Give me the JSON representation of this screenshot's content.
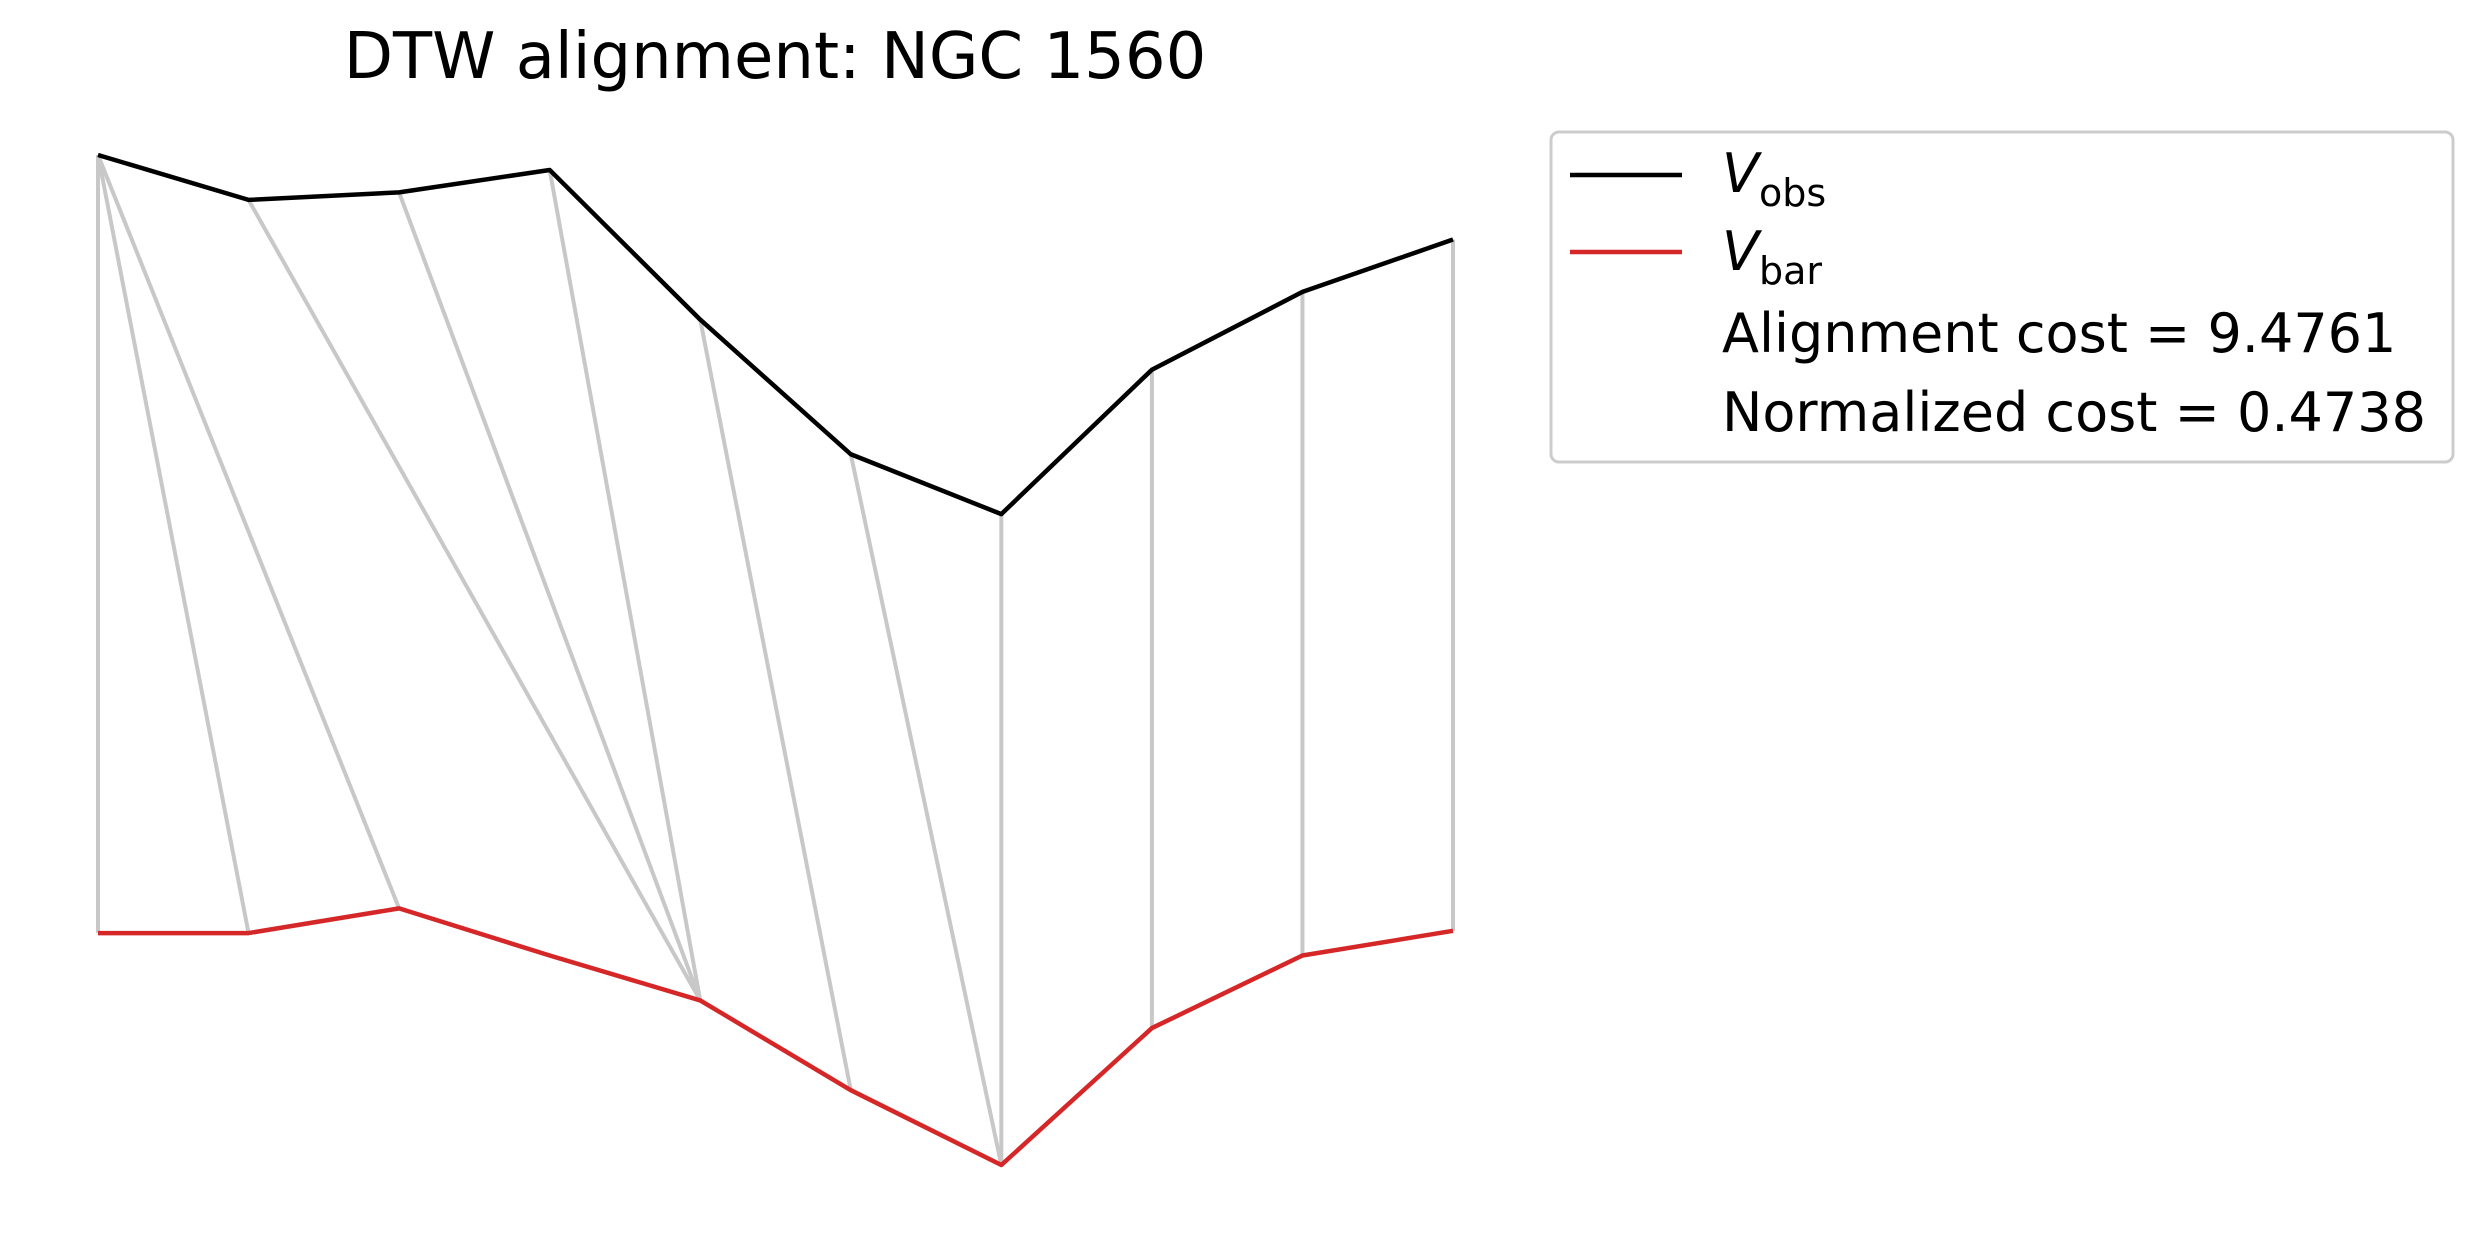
{
  "chart_data": {
    "type": "line",
    "title": "DTW alignment: NGC 1560",
    "xlabel": "",
    "ylabel": "",
    "grid": false,
    "axes_visible": false,
    "legend_position": "upper-right-outside",
    "x": [
      0,
      1,
      2,
      3,
      4,
      5,
      6,
      7,
      8,
      9
    ],
    "series": [
      {
        "name_main": "V",
        "name_sub": "obs",
        "color": "#000000",
        "values": [
          1.0,
          0.94,
          0.95,
          0.98,
          0.78,
          0.6,
          0.52,
          0.713,
          0.817,
          0.887
        ]
      },
      {
        "name_main": "V",
        "name_sub": "bar",
        "color": "#d62728",
        "values": [
          -0.04,
          -0.04,
          -0.007,
          -0.07,
          -0.13,
          -0.25,
          -0.35,
          -0.167,
          -0.07,
          -0.037
        ]
      }
    ],
    "alignment_color": "#c8c8c8",
    "alignment_pairs": [
      [
        0,
        0
      ],
      [
        0,
        1
      ],
      [
        0,
        2
      ],
      [
        1,
        4
      ],
      [
        2,
        4
      ],
      [
        3,
        4
      ],
      [
        4,
        5
      ],
      [
        5,
        6
      ],
      [
        6,
        6
      ],
      [
        7,
        7
      ],
      [
        8,
        8
      ],
      [
        9,
        9
      ]
    ],
    "ylim": [
      -0.4,
      1.1
    ]
  },
  "legend": {
    "cost_label": "Alignment cost = 9.4761",
    "norm_label": "Normalized cost = 0.4738"
  }
}
